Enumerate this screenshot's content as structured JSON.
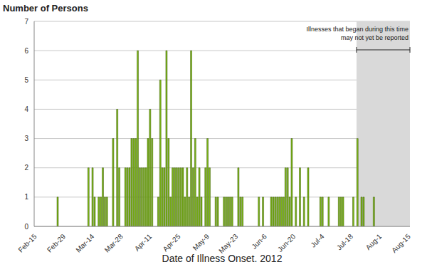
{
  "chart_data": {
    "type": "bar",
    "y_label": "Number of Persons",
    "x_label": "Date of Illness Onset, 2012",
    "categories": [
      "Feb-15",
      null,
      null,
      null,
      null,
      null,
      null,
      null,
      null,
      null,
      null,
      null,
      null,
      null,
      "Feb-29",
      null,
      null,
      null,
      null,
      null,
      null,
      null,
      null,
      null,
      null,
      null,
      null,
      null,
      "Mar-14",
      null,
      null,
      null,
      null,
      null,
      null,
      null,
      null,
      null,
      null,
      null,
      null,
      null,
      "Mar-28",
      null,
      null,
      null,
      null,
      null,
      null,
      null,
      null,
      null,
      null,
      null,
      null,
      null,
      "Apr-11",
      null,
      null,
      null,
      null,
      null,
      null,
      null,
      null,
      null,
      null,
      null,
      null,
      null,
      "Apr-25",
      null,
      null,
      null,
      null,
      null,
      null,
      null,
      null,
      null,
      null,
      null,
      null,
      null,
      "May-9",
      null,
      null,
      null,
      null,
      null,
      null,
      null,
      null,
      null,
      null,
      null,
      null,
      null,
      "May-23",
      null,
      null,
      null,
      null,
      null,
      null,
      null,
      null,
      null,
      null,
      null,
      null,
      null,
      "Jun-6",
      null,
      null,
      null,
      null,
      null,
      null,
      null,
      null,
      null,
      null,
      null,
      null,
      null,
      "Jun-20",
      null,
      null,
      null,
      null,
      null,
      null,
      null,
      null,
      null,
      null,
      null,
      null,
      null,
      "Jul-4",
      null,
      null,
      null,
      null,
      null,
      null,
      null,
      null,
      null,
      null,
      null,
      null,
      null,
      "Jul-18",
      null,
      null,
      null,
      null,
      null,
      null,
      null,
      null,
      null,
      null,
      null,
      null,
      null,
      "Aug-1",
      null,
      null,
      null,
      null,
      null,
      null,
      null,
      null,
      null,
      null,
      null,
      null,
      null,
      "Aug-15"
    ],
    "values": [
      0,
      0,
      0,
      0,
      0,
      0,
      0,
      0,
      0,
      0,
      0,
      1,
      0,
      0,
      0,
      0,
      0,
      0,
      0,
      0,
      0,
      0,
      0,
      0,
      0,
      0,
      2,
      0,
      2,
      1,
      0,
      1,
      1,
      2,
      1,
      1,
      0,
      0,
      3,
      0,
      4,
      2,
      0,
      0,
      2,
      2,
      2,
      3,
      3,
      3,
      6,
      2,
      2,
      2,
      2,
      3,
      4,
      3,
      0,
      0,
      1,
      5,
      2,
      2,
      6,
      3,
      1,
      2,
      2,
      2,
      2,
      2,
      2,
      1,
      2,
      1,
      6,
      2,
      3,
      1,
      2,
      1,
      0,
      2,
      3,
      2,
      0,
      0,
      1,
      1,
      0,
      0,
      1,
      1,
      1,
      1,
      1,
      0,
      0,
      2,
      1,
      1,
      0,
      0,
      0,
      0,
      0,
      0,
      0,
      1,
      0,
      1,
      0,
      0,
      0,
      1,
      1,
      1,
      1,
      1,
      1,
      1,
      2,
      2,
      1,
      3,
      0,
      1,
      0,
      2,
      0,
      1,
      0,
      2,
      0,
      0,
      0,
      0,
      0,
      1,
      1,
      0,
      0,
      1,
      0,
      0,
      0,
      0,
      1,
      1,
      1,
      0,
      0,
      0,
      0,
      1,
      0,
      3,
      0,
      1,
      1,
      0,
      0,
      0,
      0,
      1,
      0,
      0,
      0,
      0,
      0,
      0,
      0,
      0,
      0,
      0,
      0,
      0,
      0,
      0,
      0,
      0,
      0
    ],
    "color": "#7cb518",
    "ylim": [
      0,
      7
    ],
    "yticks": [
      0,
      1,
      2,
      3,
      4,
      5,
      6,
      7
    ],
    "grid": true,
    "annotation": {
      "text": [
        "Illnesses that began during this time",
        "may not yet be reported"
      ],
      "range": [
        157,
        182
      ]
    }
  }
}
